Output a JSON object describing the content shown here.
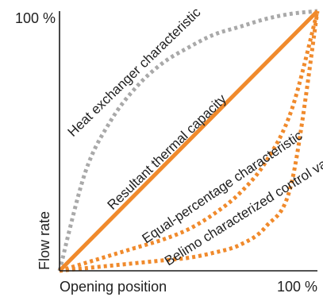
{
  "chart_data": {
    "type": "line",
    "title": "",
    "xlabel": "Opening position",
    "ylabel": "Flow rate",
    "x_tick_label": "100 %",
    "y_tick_label": "100 %",
    "xlim": [
      0,
      100
    ],
    "ylim": [
      0,
      100
    ],
    "grid": false,
    "series": [
      {
        "name": "Heat exchanger characteristic",
        "color": "#a9a9a9",
        "style": "dotted",
        "x": [
          0,
          10,
          20,
          30,
          40,
          50,
          60,
          70,
          80,
          90,
          100
        ],
        "y": [
          0,
          38,
          58,
          71,
          80,
          86,
          91,
          94,
          97,
          99,
          100
        ]
      },
      {
        "name": "Resultant thermal capacity",
        "color": "#f08a2c",
        "style": "solid",
        "x": [
          0,
          100
        ],
        "y": [
          0,
          100
        ]
      },
      {
        "name": "Equal-percentage characteristic",
        "color": "#f08a2c",
        "style": "dotted",
        "x": [
          0,
          10,
          20,
          30,
          40,
          50,
          60,
          70,
          80,
          90,
          100
        ],
        "y": [
          0,
          3,
          6,
          9,
          12,
          16,
          22,
          30,
          42,
          62,
          100
        ]
      },
      {
        "name": "Belimo characterized control valve",
        "color": "#f08a2c",
        "style": "dotted",
        "x": [
          0,
          10,
          20,
          30,
          40,
          50,
          60,
          70,
          80,
          90,
          100
        ],
        "y": [
          0,
          1,
          2,
          3,
          4,
          5,
          7,
          10,
          17,
          34,
          100
        ]
      }
    ]
  }
}
